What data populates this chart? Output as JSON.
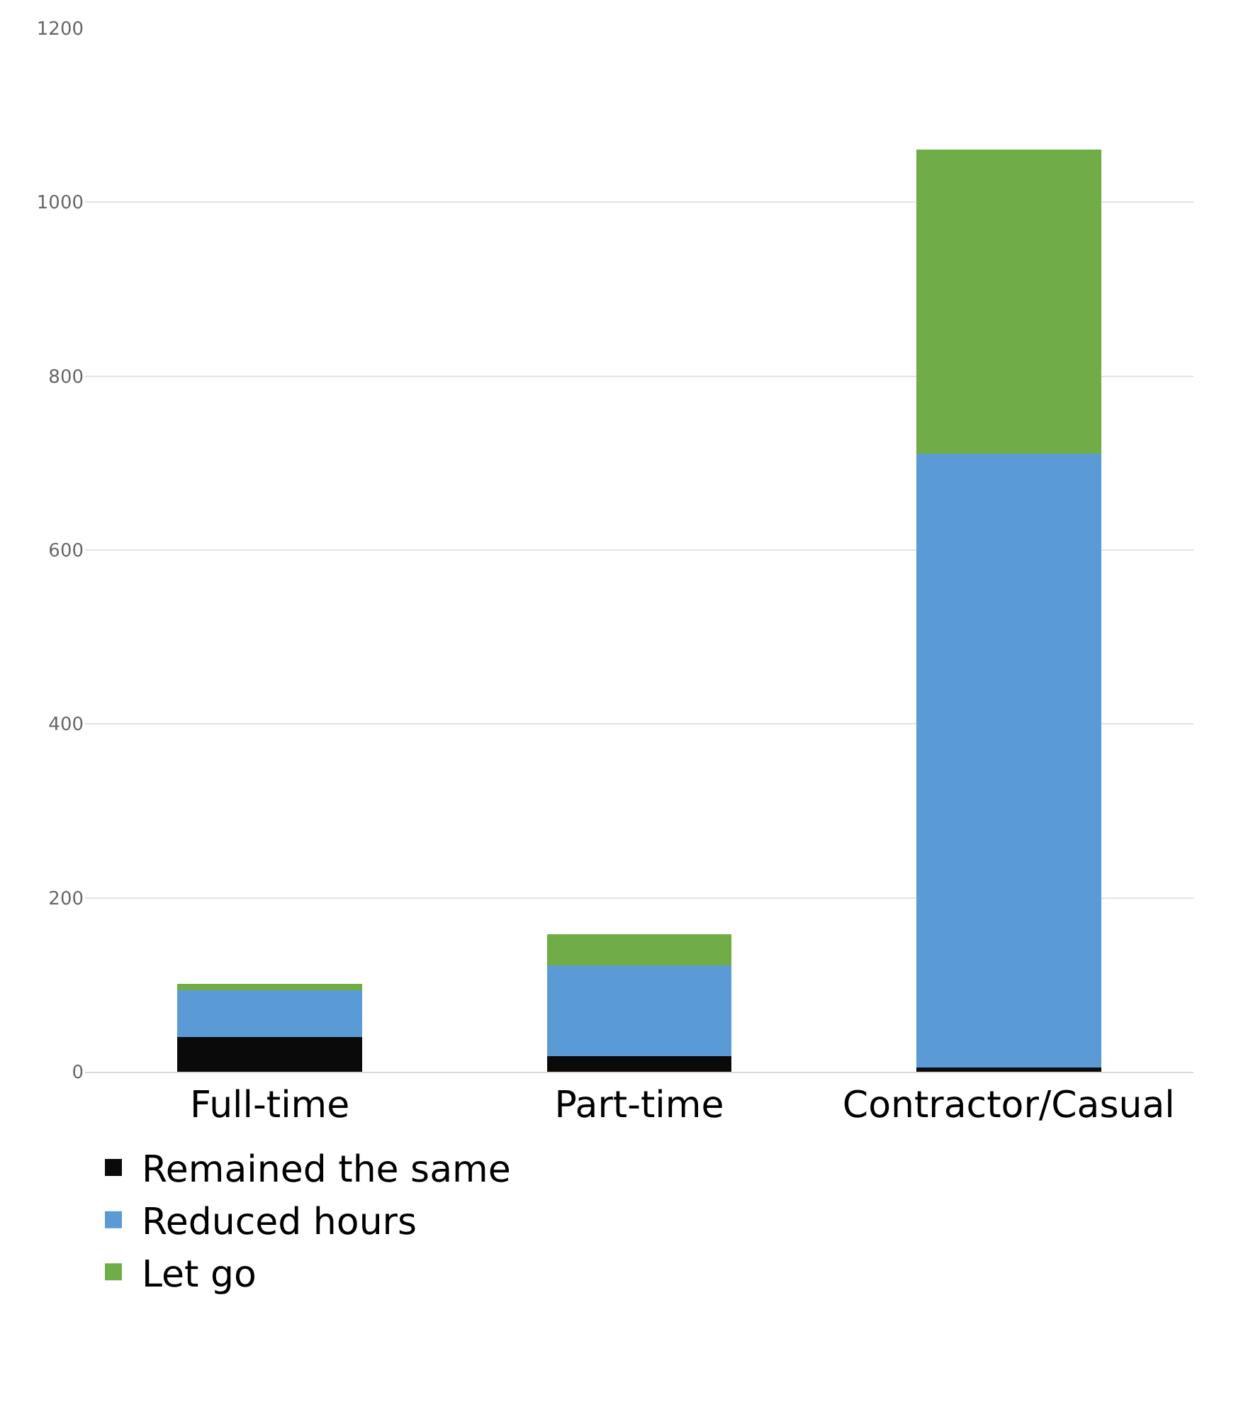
{
  "chart_data": {
    "type": "bar",
    "stacked": true,
    "categories": [
      "Full-time",
      "Part-time",
      "Contractor/Casual"
    ],
    "series": [
      {
        "name": "Remained the same",
        "color": "#0a0a0a",
        "values": [
          40,
          18,
          5
        ]
      },
      {
        "name": "Reduced hours",
        "color": "#5b9bd5",
        "values": [
          54,
          104,
          706
        ]
      },
      {
        "name": "Let go",
        "color": "#70ad47",
        "values": [
          7,
          36,
          350
        ]
      }
    ],
    "ylim": [
      0,
      1200
    ],
    "yticks": [
      0,
      200,
      400,
      600,
      800,
      1000,
      1200
    ],
    "grid": "y",
    "legend": "bottom left"
  }
}
